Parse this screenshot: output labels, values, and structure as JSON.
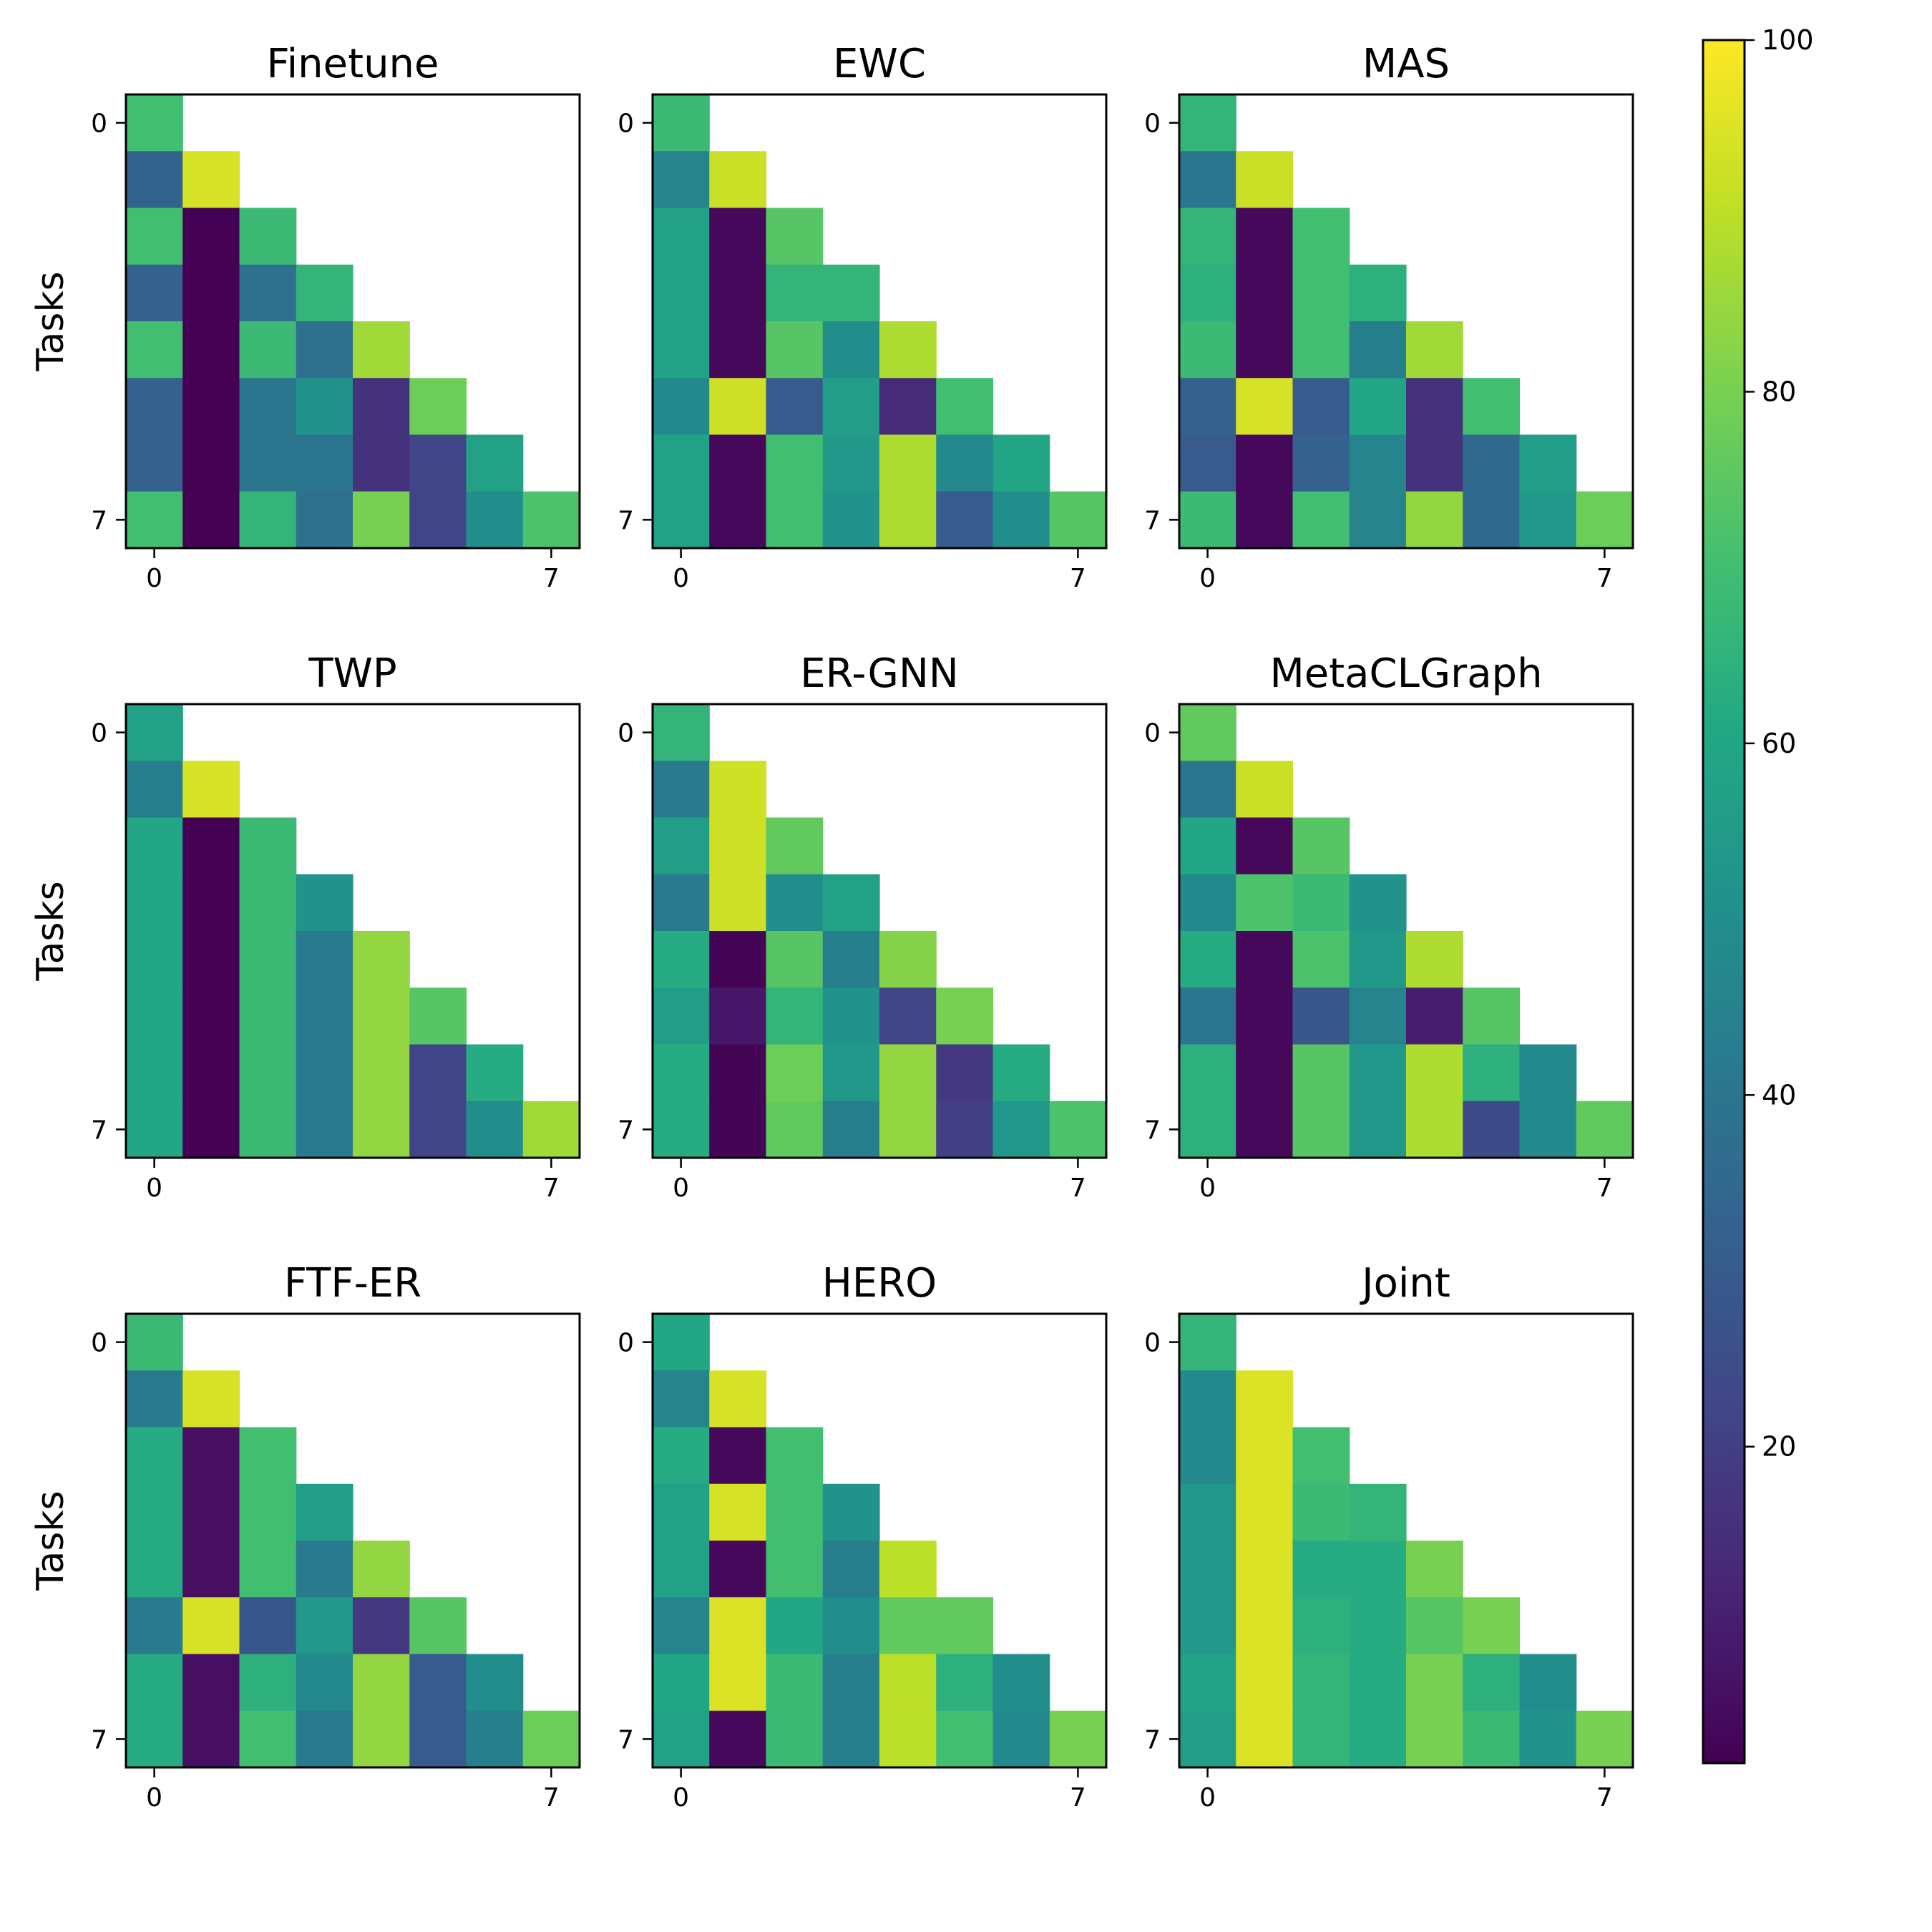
{
  "chart_data": {
    "type": "heatmap",
    "colormap": "viridis",
    "value_range": [
      2,
      100
    ],
    "grid": "triangular lower (row = after learning task, column = evaluated task)",
    "ylabel": "Tasks",
    "x_tick_labels": [
      "0",
      "7"
    ],
    "y_tick_labels": [
      "0",
      "7"
    ],
    "colorbar": {
      "ticks": [
        20,
        40,
        60,
        80,
        100
      ],
      "tick_labels": [
        "20",
        "40",
        "60",
        "80",
        "100"
      ],
      "placement": "right"
    },
    "panels": [
      {
        "title": "Finetune",
        "matrix": [
          [
            70
          ],
          [
            33,
            94
          ],
          [
            70,
            2,
            68
          ],
          [
            32,
            2,
            38,
            66
          ],
          [
            70,
            2,
            68,
            38,
            86
          ],
          [
            32,
            2,
            40,
            52,
            16,
            78
          ],
          [
            32,
            2,
            40,
            40,
            16,
            22,
            58
          ],
          [
            70,
            2,
            66,
            38,
            80,
            22,
            50,
            72
          ]
        ]
      },
      {
        "title": "EWC",
        "matrix": [
          [
            68
          ],
          [
            46,
            92
          ],
          [
            58,
            4,
            74
          ],
          [
            58,
            4,
            66,
            66
          ],
          [
            58,
            4,
            74,
            50,
            88
          ],
          [
            48,
            93,
            30,
            56,
            14,
            70
          ],
          [
            58,
            4,
            70,
            54,
            88,
            48,
            60
          ],
          [
            58,
            4,
            70,
            52,
            88,
            30,
            50,
            74
          ]
        ]
      },
      {
        "title": "MAS",
        "matrix": [
          [
            66
          ],
          [
            40,
            92
          ],
          [
            66,
            4,
            70
          ],
          [
            64,
            4,
            70,
            64
          ],
          [
            68,
            4,
            70,
            44,
            86
          ],
          [
            32,
            94,
            30,
            60,
            16,
            70
          ],
          [
            30,
            4,
            32,
            46,
            16,
            36,
            56
          ],
          [
            68,
            4,
            70,
            46,
            84,
            36,
            54,
            78
          ]
        ]
      },
      {
        "title": "TWP",
        "matrix": [
          [
            58
          ],
          [
            44,
            94
          ],
          [
            60,
            2,
            68
          ],
          [
            60,
            2,
            68,
            52
          ],
          [
            60,
            2,
            68,
            42,
            84
          ],
          [
            60,
            2,
            68,
            42,
            84,
            74
          ],
          [
            60,
            2,
            68,
            42,
            84,
            22,
            62
          ],
          [
            60,
            2,
            68,
            42,
            84,
            22,
            50,
            86
          ]
        ]
      },
      {
        "title": "ER-GNN",
        "matrix": [
          [
            66
          ],
          [
            42,
            93
          ],
          [
            56,
            93,
            76
          ],
          [
            42,
            93,
            50,
            58
          ],
          [
            62,
            3,
            74,
            44,
            82
          ],
          [
            56,
            8,
            66,
            52,
            22,
            80
          ],
          [
            62,
            3,
            78,
            54,
            84,
            18,
            62
          ],
          [
            62,
            3,
            76,
            44,
            84,
            20,
            54,
            72
          ]
        ]
      },
      {
        "title": "MetaCLGraph",
        "matrix": [
          [
            76
          ],
          [
            40,
            92
          ],
          [
            60,
            4,
            74
          ],
          [
            48,
            72,
            68,
            52
          ],
          [
            62,
            4,
            72,
            54,
            88
          ],
          [
            40,
            4,
            28,
            46,
            10,
            74
          ],
          [
            64,
            4,
            74,
            54,
            88,
            64,
            48
          ],
          [
            64,
            4,
            74,
            54,
            88,
            24,
            48,
            76
          ]
        ]
      },
      {
        "title": "FTF-ER",
        "matrix": [
          [
            68
          ],
          [
            42,
            94
          ],
          [
            62,
            6,
            70
          ],
          [
            62,
            6,
            70,
            56
          ],
          [
            62,
            6,
            70,
            42,
            84
          ],
          [
            42,
            94,
            28,
            54,
            18,
            74
          ],
          [
            62,
            6,
            64,
            48,
            84,
            30,
            50
          ],
          [
            62,
            6,
            70,
            42,
            84,
            30,
            44,
            78
          ]
        ]
      },
      {
        "title": "HERO",
        "matrix": [
          [
            60
          ],
          [
            46,
            94
          ],
          [
            62,
            4,
            70
          ],
          [
            58,
            94,
            70,
            52
          ],
          [
            58,
            4,
            70,
            44,
            90
          ],
          [
            46,
            95,
            60,
            50,
            76,
            76
          ],
          [
            60,
            95,
            68,
            44,
            90,
            64,
            50
          ],
          [
            58,
            4,
            68,
            44,
            90,
            70,
            48,
            80
          ]
        ]
      },
      {
        "title": "Joint",
        "matrix": [
          [
            66
          ],
          [
            48,
            95
          ],
          [
            48,
            95,
            70
          ],
          [
            54,
            95,
            68,
            66
          ],
          [
            54,
            95,
            62,
            62,
            80
          ],
          [
            54,
            95,
            64,
            62,
            74,
            80
          ],
          [
            58,
            95,
            66,
            62,
            80,
            64,
            50
          ],
          [
            56,
            95,
            66,
            62,
            80,
            68,
            52,
            80
          ]
        ]
      }
    ]
  }
}
